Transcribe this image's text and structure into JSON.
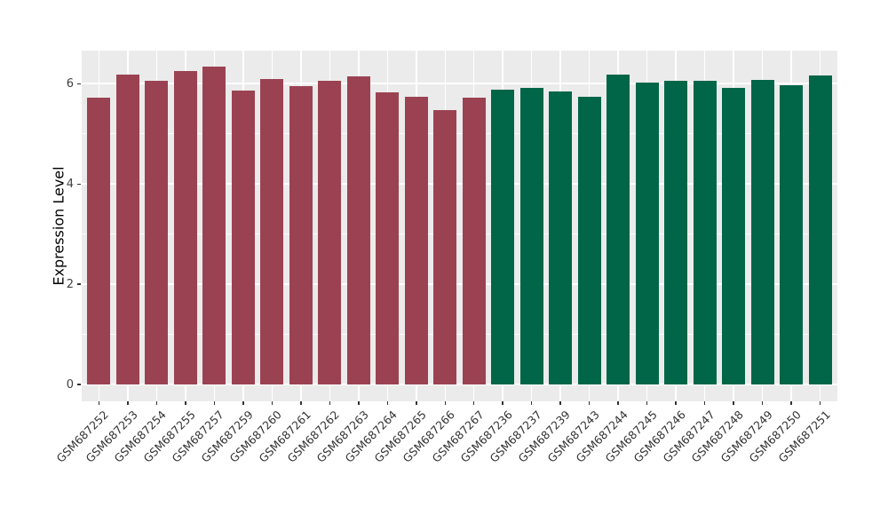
{
  "figure": {
    "background": "#FFFFFF",
    "panel_background": "#EBEBEB",
    "gridline_color": "#FFFFFF",
    "axis_text_color": "#404040",
    "axis_title_color": "#000000",
    "tick_mark_color": "#333333"
  },
  "chart_data": {
    "type": "bar",
    "title": "",
    "xlabel": "",
    "ylabel": "Expression Level",
    "ylim": [
      0,
      6.66
    ],
    "yticks": [
      0,
      2,
      4,
      6
    ],
    "yminor_ticks": [
      1,
      3,
      5
    ],
    "grid": "on",
    "legend_position": "none",
    "group_colors": {
      "group1": "#9B4252",
      "group2": "#016647"
    },
    "bars": [
      {
        "label": "GSM687252",
        "value": 5.72,
        "group": "group1"
      },
      {
        "label": "GSM687253",
        "value": 6.18,
        "group": "group1"
      },
      {
        "label": "GSM687254",
        "value": 6.06,
        "group": "group1"
      },
      {
        "label": "GSM687255",
        "value": 6.25,
        "group": "group1"
      },
      {
        "label": "GSM687257",
        "value": 6.35,
        "group": "group1"
      },
      {
        "label": "GSM687259",
        "value": 5.86,
        "group": "group1"
      },
      {
        "label": "GSM687260",
        "value": 6.09,
        "group": "group1"
      },
      {
        "label": "GSM687261",
        "value": 5.95,
        "group": "group1"
      },
      {
        "label": "GSM687262",
        "value": 6.06,
        "group": "group1"
      },
      {
        "label": "GSM687263",
        "value": 6.15,
        "group": "group1"
      },
      {
        "label": "GSM687264",
        "value": 5.82,
        "group": "group1"
      },
      {
        "label": "GSM687265",
        "value": 5.74,
        "group": "group1"
      },
      {
        "label": "GSM687266",
        "value": 5.47,
        "group": "group1"
      },
      {
        "label": "GSM687267",
        "value": 5.72,
        "group": "group1"
      },
      {
        "label": "GSM687236",
        "value": 5.88,
        "group": "group2"
      },
      {
        "label": "GSM687237",
        "value": 5.92,
        "group": "group2"
      },
      {
        "label": "GSM687239",
        "value": 5.84,
        "group": "group2"
      },
      {
        "label": "GSM687243",
        "value": 5.74,
        "group": "group2"
      },
      {
        "label": "GSM687244",
        "value": 6.18,
        "group": "group2"
      },
      {
        "label": "GSM687245",
        "value": 6.03,
        "group": "group2"
      },
      {
        "label": "GSM687246",
        "value": 6.05,
        "group": "group2"
      },
      {
        "label": "GSM687247",
        "value": 6.05,
        "group": "group2"
      },
      {
        "label": "GSM687248",
        "value": 5.91,
        "group": "group2"
      },
      {
        "label": "GSM687249",
        "value": 6.07,
        "group": "group2"
      },
      {
        "label": "GSM687250",
        "value": 5.97,
        "group": "group2"
      },
      {
        "label": "GSM687251",
        "value": 6.16,
        "group": "group2"
      }
    ]
  }
}
